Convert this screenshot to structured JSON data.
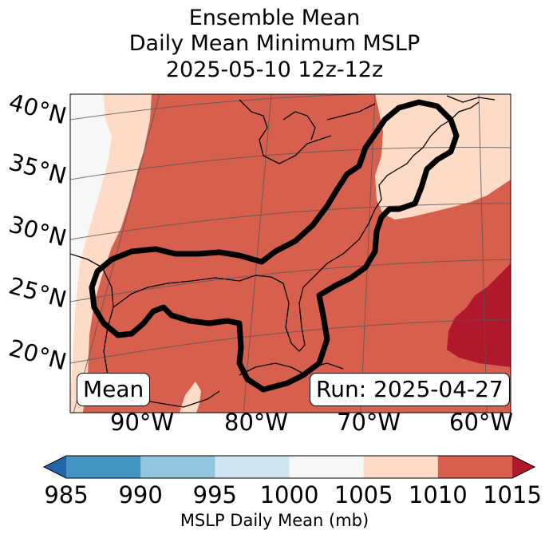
{
  "title": {
    "line1": "Ensemble Mean",
    "line2": "Daily Mean Minimum MSLP",
    "line3": "2025-05-10 12z-12z"
  },
  "map": {
    "lat_labels": [
      "40°N",
      "35°N",
      "30°N",
      "25°N",
      "20°N"
    ],
    "lon_labels": [
      "90°W",
      "80°W",
      "70°W",
      "60°W"
    ],
    "mean_label": "Mean",
    "run_label": "Run: 2025-04-27",
    "fill_colors": {
      "1000-1005": "#f7f7f7",
      "1005-1010": "#fddbc7",
      "1010-1015": "#d6604d",
      "1015+": "#b2182b"
    },
    "contour_color": "#000000"
  },
  "colorbar": {
    "label": "MSLP Daily Mean (mb)",
    "ticks": [
      "985",
      "990",
      "995",
      "1000",
      "1005",
      "1010",
      "1015"
    ],
    "colors": [
      "#2166ac",
      "#4393c3",
      "#92c5de",
      "#d1e5f0",
      "#f7f7f7",
      "#fddbc7",
      "#d6604d",
      "#b2182b"
    ]
  }
}
